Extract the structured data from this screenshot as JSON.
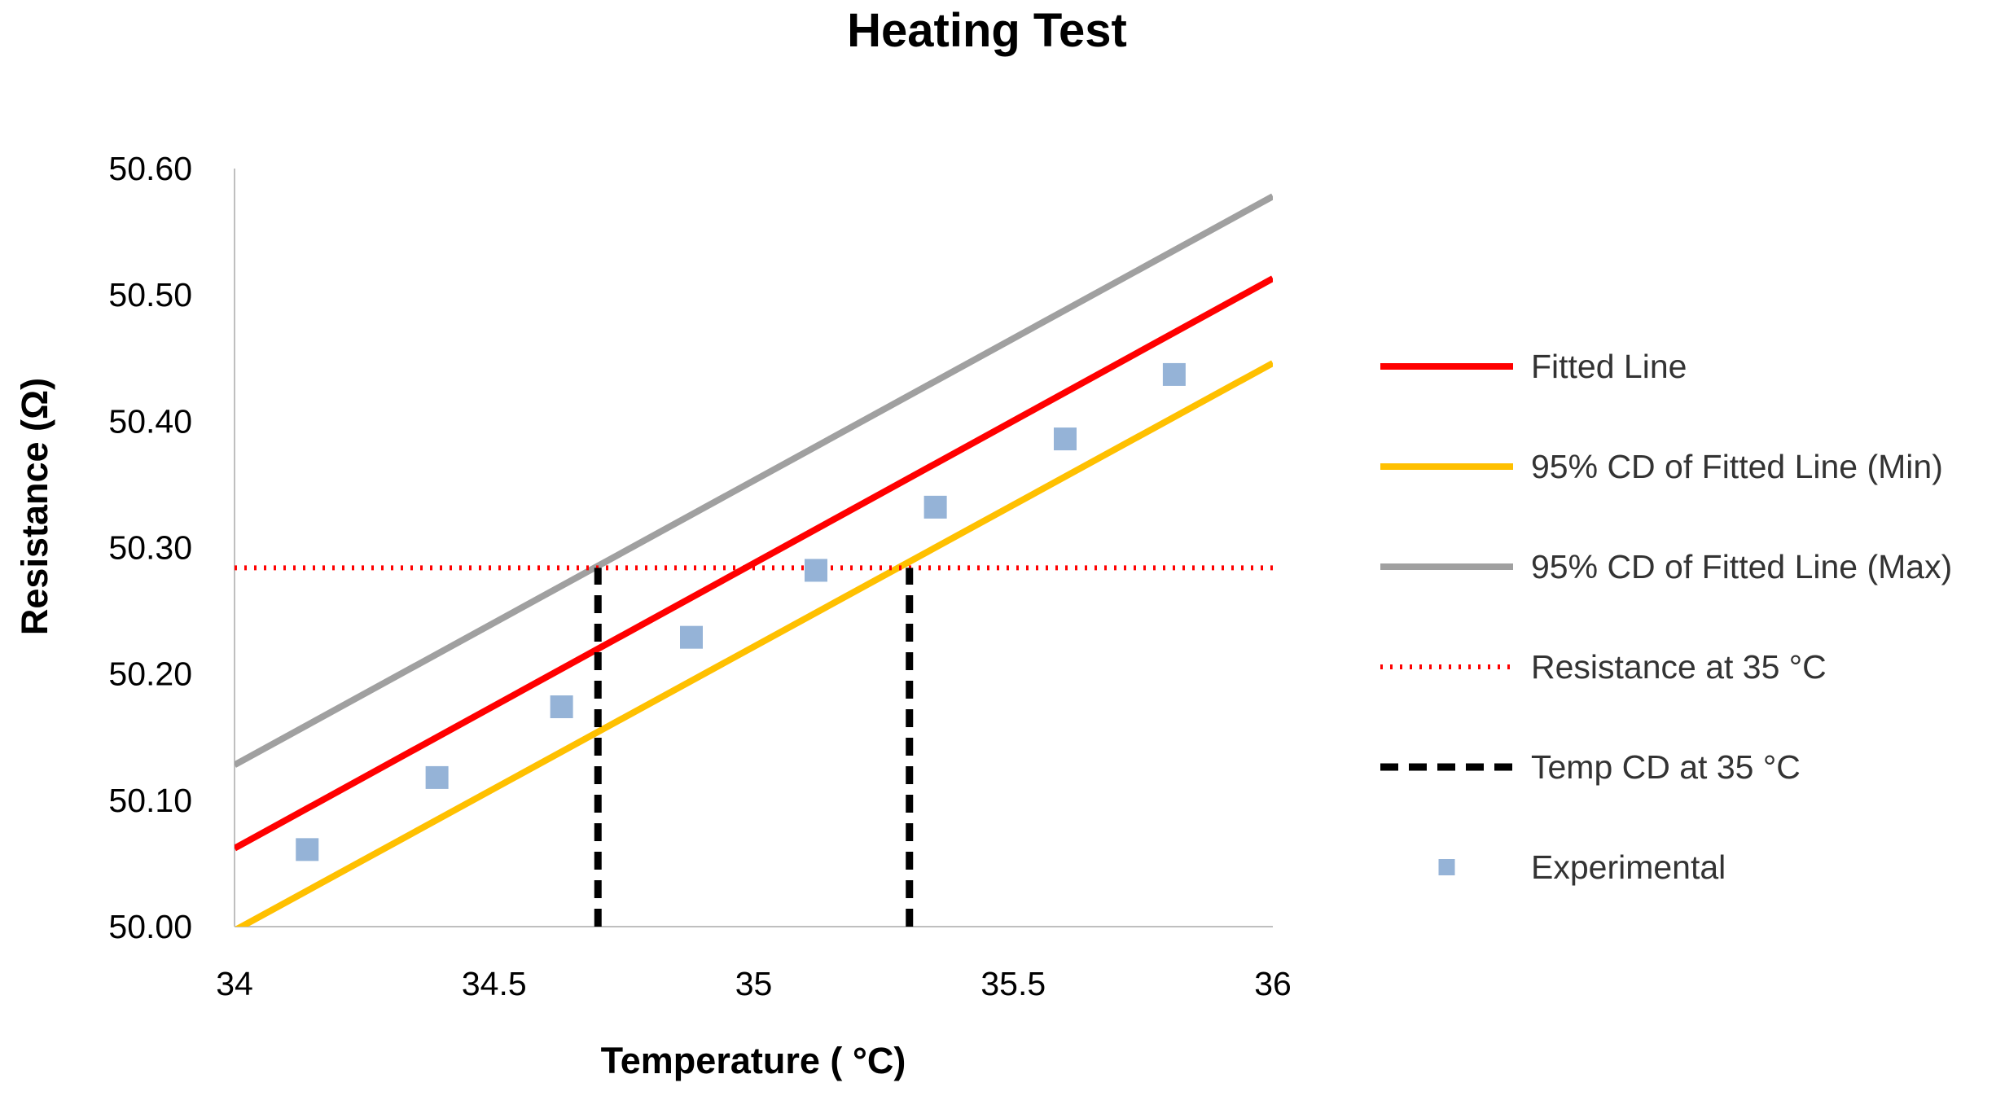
{
  "chart_data": {
    "type": "scatter",
    "title": "Heating Test",
    "xlabel": "Temperature ( °C)",
    "ylabel": "Resistance (Ω)",
    "xlim": [
      34,
      36
    ],
    "ylim": [
      50.0,
      50.6
    ],
    "x_ticks": [
      34,
      34.5,
      35,
      35.5,
      36
    ],
    "x_tick_labels": [
      "34",
      "34.5",
      "35",
      "35.5",
      "36"
    ],
    "y_ticks": [
      50.0,
      50.1,
      50.2,
      50.3,
      50.4,
      50.5,
      50.6
    ],
    "y_tick_labels": [
      "50.00",
      "50.10",
      "50.20",
      "50.30",
      "50.40",
      "50.50",
      "50.60"
    ],
    "grid": false,
    "legend_position": "right",
    "series": [
      {
        "name": "Fitted Line",
        "kind": "line",
        "style": "solid",
        "color": "#ff0000",
        "x": [
          34,
          36
        ],
        "y": [
          50.062,
          50.513
        ]
      },
      {
        "name": "95% CD of Fitted Line (Min)",
        "kind": "line",
        "style": "solid",
        "color": "#ffc000",
        "x": [
          34,
          36
        ],
        "y": [
          49.997,
          50.446
        ]
      },
      {
        "name": "95% CD of Fitted Line (Max)",
        "kind": "line",
        "style": "solid",
        "color": "#a0a0a0",
        "x": [
          34,
          36
        ],
        "y": [
          50.128,
          50.578
        ]
      },
      {
        "name": "Resistance at 35 °C",
        "kind": "hline",
        "style": "dotted",
        "color": "#ff0000",
        "x": [
          34,
          36
        ],
        "y": [
          50.284,
          50.284
        ]
      },
      {
        "name": "Temp CD at 35 °C",
        "kind": "vlines",
        "style": "dashed",
        "color": "#000000",
        "segments": [
          {
            "x": [
              34.7,
              34.7
            ],
            "y": [
              50.0,
              50.284
            ]
          },
          {
            "x": [
              35.3,
              35.3
            ],
            "y": [
              50.0,
              50.284
            ]
          }
        ]
      },
      {
        "name": "Experimental",
        "kind": "scatter",
        "marker": "square",
        "color": "#95b3d7",
        "x": [
          34.14,
          34.39,
          34.63,
          34.88,
          35.12,
          35.35,
          35.6,
          35.81
        ],
        "y": [
          50.061,
          50.118,
          50.174,
          50.229,
          50.282,
          50.332,
          50.386,
          50.437
        ]
      }
    ]
  }
}
